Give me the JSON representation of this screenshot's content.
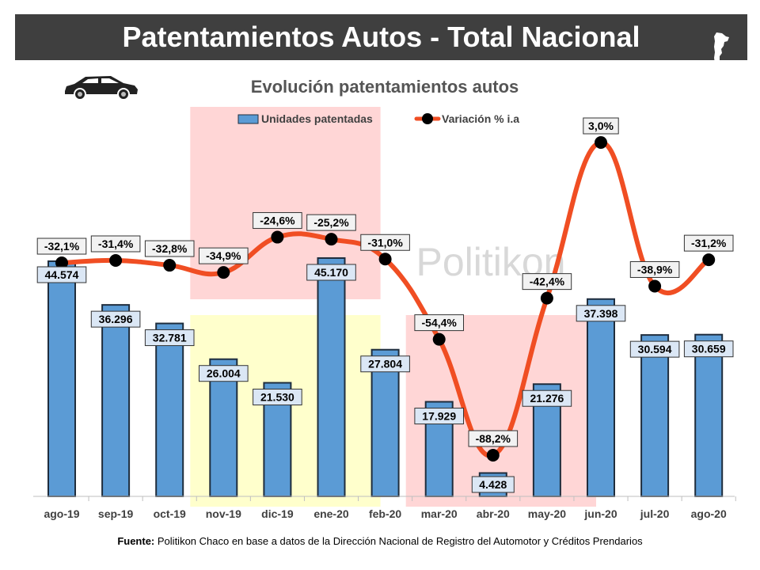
{
  "header": {
    "title": "Patentamientos Autos - Total Nacional"
  },
  "icons": {
    "car": "car-icon",
    "map": "argentina-map-icon"
  },
  "watermark": "Politikon",
  "source": {
    "label": "Fuente:",
    "text": "Politikon Chaco en base a datos de la Dirección Nacional de Registro del Automotor y Créditos Prendarios"
  },
  "colors": {
    "bar": "#5b9bd5",
    "line": "#f04e23",
    "highlight_red": "#ffd6d6",
    "highlight_yellow": "#ffffcc",
    "header_bg": "#3f3f3f"
  },
  "chart_data": {
    "type": "bar",
    "title": "Evolución patentamientos autos",
    "legend_position": "top",
    "categories": [
      "ago-19",
      "sep-19",
      "oct-19",
      "nov-19",
      "dic-19",
      "ene-20",
      "feb-20",
      "mar-20",
      "abr-20",
      "may-20",
      "jun-20",
      "jul-20",
      "ago-20"
    ],
    "series": [
      {
        "name": "Unidades patentadas",
        "type": "bar",
        "values": [
          44574,
          36296,
          32781,
          26004,
          21530,
          45170,
          27804,
          17929,
          4428,
          21276,
          37398,
          30594,
          30659
        ],
        "labels": [
          "44.574",
          "36.296",
          "32.781",
          "26.004",
          "21.530",
          "45.170",
          "27.804",
          "17.929",
          "4.428",
          "21.276",
          "37.398",
          "30.594",
          "30.659"
        ]
      },
      {
        "name": "Variación % i.a",
        "type": "line",
        "values": [
          -32.1,
          -31.4,
          -32.8,
          -34.9,
          -24.6,
          -25.2,
          -31.0,
          -54.4,
          -88.2,
          -42.4,
          3.0,
          -38.9,
          -31.2
        ],
        "labels": [
          "-32,1%",
          "-31,4%",
          "-32,8%",
          "-34,9%",
          "-24,6%",
          "-25,2%",
          "-31,0%",
          "-54,4%",
          "-88,2%",
          "-42,4%",
          "3,0%",
          "-38,9%",
          "-31,2%"
        ]
      }
    ],
    "highlights": [
      {
        "color": "red",
        "from": "nov-19",
        "to": "feb-20",
        "band": "upper"
      },
      {
        "color": "yellow",
        "from": "nov-19",
        "to": "feb-20",
        "band": "lower"
      },
      {
        "color": "red",
        "from": "mar-20",
        "to": "jun-20",
        "band": "lower"
      }
    ],
    "ylim_bars": [
      0,
      50000
    ],
    "ylim_line": [
      -95,
      10
    ],
    "grid": false
  }
}
